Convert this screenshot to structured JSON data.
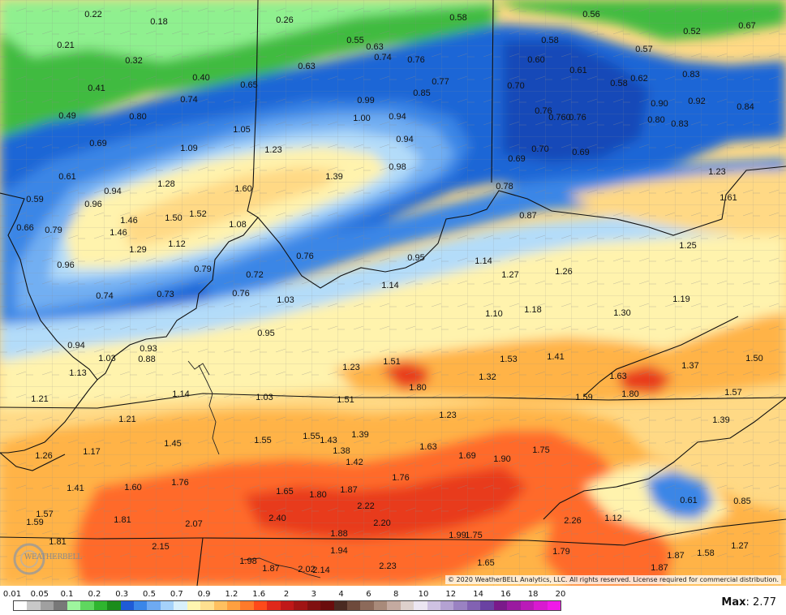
{
  "title": "",
  "copyright": "© 2020 WeatherBELL Analytics, LLC. All rights reserved. License required for commercial distribution.",
  "logo_text": "WEATHERBELL",
  "max": {
    "label": "Max",
    "value": ": 2.77"
  },
  "legend": {
    "labels": [
      "0.01",
      "0.05",
      "0.1",
      "0.2",
      "0.3",
      "0.5",
      "0.7",
      "0.9",
      "1.2",
      "1.6",
      "2",
      "3",
      "4",
      "6",
      "8",
      "10",
      "12",
      "14",
      "16",
      "18",
      "20"
    ],
    "colors": [
      "#ffffff",
      "#c8c8c8",
      "#a0a0a0",
      "#787878",
      "#9ef59e",
      "#5fd75f",
      "#2fb52f",
      "#1b8c1b",
      "#1f5bd6",
      "#3a86e8",
      "#6eaaf2",
      "#a5d2fa",
      "#d8f0fb",
      "#fff6b0",
      "#ffe090",
      "#ffc060",
      "#ffa040",
      "#ff7a2a",
      "#ff4a1a",
      "#e0281a",
      "#c01818",
      "#a01414",
      "#801010",
      "#6a0c0c",
      "#4a2a22",
      "#6e4a3c",
      "#8c6a5a",
      "#a88a7a",
      "#c4aaa0",
      "#ddd0cc",
      "#ece6f2",
      "#cfc2e2",
      "#b4a2d2",
      "#9a82c2",
      "#8262b2",
      "#6a42a2",
      "#7a1a8a",
      "#9a1aa0",
      "#ba1ab8",
      "#d81ad0",
      "#f01ae8"
    ]
  },
  "color_scale": {
    "c0_3": "#36a836",
    "c0_5": "#1f66d6",
    "c0_7": "#3b86e6",
    "c0_9": "#72aff2",
    "c1_0": "#b3dcf9",
    "c1_2": "#fff3ad",
    "c1_6": "#ffd985",
    "c2_0": "#ffb347",
    "c3_0": "#ff6a2a",
    "c4_0": "#e83a1a",
    "c_green_light": "#8ff08f",
    "c_green": "#3fbb3f"
  },
  "values": [
    "0.22",
    "0.18",
    "0.26",
    "0.58",
    "0.56",
    "0.52",
    "0.67",
    "0.21",
    "0.55",
    "0.63",
    "0.74",
    "0.76",
    "0.58",
    "0.57",
    "0.32",
    "0.63",
    "0.60",
    "0.61",
    "0.83",
    "0.40",
    "0.65",
    "0.77",
    "0.70",
    "0.58",
    "0.62",
    "0.41",
    "0.85",
    "0.74",
    "0.99",
    "0.90",
    "0.92",
    "0.84",
    "0.49",
    "0.80",
    "1.00",
    "0.94",
    "0.76",
    "0.760",
    "0.76",
    "0.80",
    "0.83",
    "1.05",
    "0.94",
    "0.69",
    "1.09",
    "1.23",
    "0.70",
    "0.69",
    "0.69",
    "0.98",
    "1.39",
    "1.23",
    "0.61",
    "1.28",
    "1.60",
    "0.78",
    "1.61",
    "0.59",
    "0.94",
    "0.96",
    "1.46",
    "1.50",
    "1.52",
    "1.08",
    "0.87",
    "0.66",
    "0.79",
    "1.46",
    "1.29",
    "1.12",
    "1.25",
    "0.96",
    "0.79",
    "0.76",
    "0.95",
    "1.14",
    "1.27",
    "1.26",
    "0.72",
    "0.74",
    "0.73",
    "0.76",
    "1.03",
    "1.14",
    "1.10",
    "1.18",
    "1.30",
    "1.19",
    "0.95",
    "0.94",
    "0.93",
    "1.03",
    "0.88",
    "1.23",
    "1.51",
    "1.53",
    "1.41",
    "1.50",
    "1.13",
    "1.80",
    "1.32",
    "1.63",
    "1.37",
    "1.14",
    "1.03",
    "1.51",
    "1.59",
    "1.80",
    "1.57",
    "1.21",
    "1.21",
    "1.23",
    "1.39",
    "1.45",
    "1.55",
    "1.55",
    "1.43",
    "1.39",
    "1.26",
    "1.17",
    "1.38",
    "1.63",
    "1.69",
    "1.90",
    "1.75",
    "1.42",
    "1.41",
    "1.60",
    "1.76",
    "1.76",
    "1.65",
    "1.80",
    "1.87",
    "1.57",
    "0.61",
    "0.85",
    "1.81",
    "2.22",
    "2.26",
    "1.12",
    "1.59",
    "2.07",
    "2.40",
    "2.20",
    "1.81",
    "1.88",
    "1.99",
    "1.75",
    "1.27",
    "2.15",
    "1.79",
    "1.58",
    "1.94",
    "1.87",
    "1.98",
    "1.87",
    "2.02",
    "2.14",
    "2.23",
    "1.65",
    "1.87"
  ]
}
